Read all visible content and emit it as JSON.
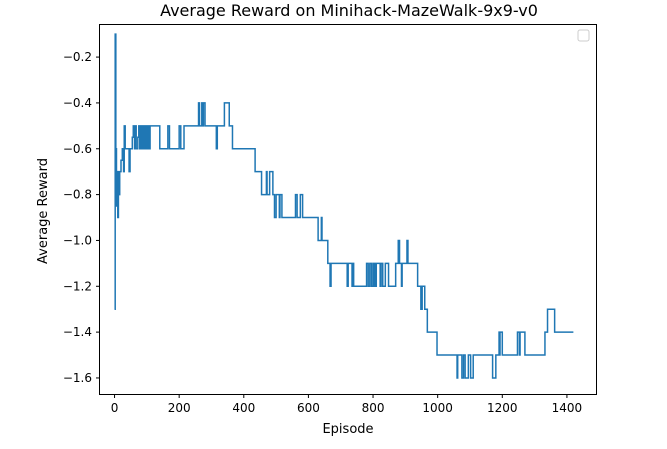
{
  "chart_data": {
    "type": "line",
    "title": "Average Reward on Minihack-MazeWalk-9x9-v0",
    "xlabel": "Episode",
    "ylabel": "Average Reward",
    "xlim": [
      -45,
      1490
    ],
    "ylim": [
      -1.67,
      -0.06
    ],
    "xticks": [
      0,
      200,
      400,
      600,
      800,
      1000,
      1200,
      1400
    ],
    "yticks": [
      -1.6,
      -1.4,
      -1.2,
      -1.0,
      -0.8,
      -0.6,
      -0.4,
      -0.2
    ],
    "xtick_labels": [
      "0",
      "200",
      "400",
      "600",
      "800",
      "1000",
      "1200",
      "1400"
    ],
    "ytick_labels": [
      "−1.6",
      "−1.4",
      "−1.2",
      "−1.0",
      "−0.8",
      "−0.6",
      "−0.4",
      "−0.2"
    ],
    "grid": false,
    "legend": {
      "placement": "top-right",
      "entries": []
    },
    "line_color": "#1f77b4",
    "series": [
      {
        "step": true,
        "points": [
          [
            0,
            -1.3
          ],
          [
            2,
            -0.1
          ],
          [
            4,
            -0.6
          ],
          [
            6,
            -0.85
          ],
          [
            8,
            -0.7
          ],
          [
            10,
            -0.9
          ],
          [
            12,
            -0.7
          ],
          [
            14,
            -0.8
          ],
          [
            16,
            -0.7
          ],
          [
            20,
            -0.65
          ],
          [
            24,
            -0.6
          ],
          [
            28,
            -0.7
          ],
          [
            30,
            -0.5
          ],
          [
            33,
            -0.6
          ],
          [
            45,
            -0.7
          ],
          [
            48,
            -0.6
          ],
          [
            55,
            -0.55
          ],
          [
            58,
            -0.5
          ],
          [
            62,
            -0.6
          ],
          [
            64,
            -0.5
          ],
          [
            67,
            -0.6
          ],
          [
            72,
            -0.55
          ],
          [
            75,
            -0.5
          ],
          [
            78,
            -0.6
          ],
          [
            82,
            -0.5
          ],
          [
            85,
            -0.6
          ],
          [
            88,
            -0.5
          ],
          [
            92,
            -0.6
          ],
          [
            95,
            -0.5
          ],
          [
            98,
            -0.6
          ],
          [
            102,
            -0.5
          ],
          [
            106,
            -0.6
          ],
          [
            110,
            -0.5
          ],
          [
            140,
            -0.6
          ],
          [
            165,
            -0.5
          ],
          [
            170,
            -0.6
          ],
          [
            200,
            -0.5
          ],
          [
            205,
            -0.6
          ],
          [
            215,
            -0.5
          ],
          [
            260,
            -0.4
          ],
          [
            263,
            -0.5
          ],
          [
            270,
            -0.4
          ],
          [
            273,
            -0.5
          ],
          [
            275,
            -0.4
          ],
          [
            280,
            -0.5
          ],
          [
            315,
            -0.6
          ],
          [
            318,
            -0.5
          ],
          [
            340,
            -0.4
          ],
          [
            355,
            -0.5
          ],
          [
            365,
            -0.6
          ],
          [
            435,
            -0.7
          ],
          [
            455,
            -0.8
          ],
          [
            470,
            -0.7
          ],
          [
            472,
            -0.8
          ],
          [
            480,
            -0.7
          ],
          [
            490,
            -0.8
          ],
          [
            495,
            -0.9
          ],
          [
            500,
            -0.8
          ],
          [
            510,
            -0.9
          ],
          [
            512,
            -0.8
          ],
          [
            518,
            -0.9
          ],
          [
            560,
            -0.8
          ],
          [
            565,
            -0.9
          ],
          [
            575,
            -0.8
          ],
          [
            582,
            -0.9
          ],
          [
            630,
            -1.0
          ],
          [
            640,
            -0.9
          ],
          [
            642,
            -1.0
          ],
          [
            660,
            -1.1
          ],
          [
            667,
            -1.2
          ],
          [
            670,
            -1.1
          ],
          [
            720,
            -1.2
          ],
          [
            723,
            -1.1
          ],
          [
            735,
            -1.2
          ],
          [
            737,
            -1.1
          ],
          [
            740,
            -1.2
          ],
          [
            780,
            -1.1
          ],
          [
            785,
            -1.2
          ],
          [
            790,
            -1.1
          ],
          [
            795,
            -1.2
          ],
          [
            800,
            -1.1
          ],
          [
            802,
            -1.2
          ],
          [
            805,
            -1.1
          ],
          [
            807,
            -1.2
          ],
          [
            810,
            -1.1
          ],
          [
            822,
            -1.2
          ],
          [
            825,
            -1.1
          ],
          [
            830,
            -1.2
          ],
          [
            838,
            -1.1
          ],
          [
            848,
            -1.2
          ],
          [
            870,
            -1.1
          ],
          [
            878,
            -1.0
          ],
          [
            882,
            -1.1
          ],
          [
            888,
            -1.2
          ],
          [
            890,
            -1.1
          ],
          [
            905,
            -1.0
          ],
          [
            908,
            -1.1
          ],
          [
            938,
            -1.2
          ],
          [
            948,
            -1.3
          ],
          [
            952,
            -1.2
          ],
          [
            960,
            -1.3
          ],
          [
            968,
            -1.4
          ],
          [
            998,
            -1.5
          ],
          [
            1060,
            -1.6
          ],
          [
            1062,
            -1.5
          ],
          [
            1075,
            -1.6
          ],
          [
            1080,
            -1.5
          ],
          [
            1085,
            -1.6
          ],
          [
            1095,
            -1.5
          ],
          [
            1102,
            -1.6
          ],
          [
            1110,
            -1.5
          ],
          [
            1170,
            -1.6
          ],
          [
            1180,
            -1.5
          ],
          [
            1190,
            -1.4
          ],
          [
            1192,
            -1.5
          ],
          [
            1193,
            -1.4
          ],
          [
            1200,
            -1.5
          ],
          [
            1247,
            -1.4
          ],
          [
            1253,
            -1.5
          ],
          [
            1255,
            -1.4
          ],
          [
            1270,
            -1.5
          ],
          [
            1332,
            -1.4
          ],
          [
            1340,
            -1.3
          ],
          [
            1362,
            -1.4
          ],
          [
            1420,
            -1.4
          ]
        ]
      }
    ]
  }
}
